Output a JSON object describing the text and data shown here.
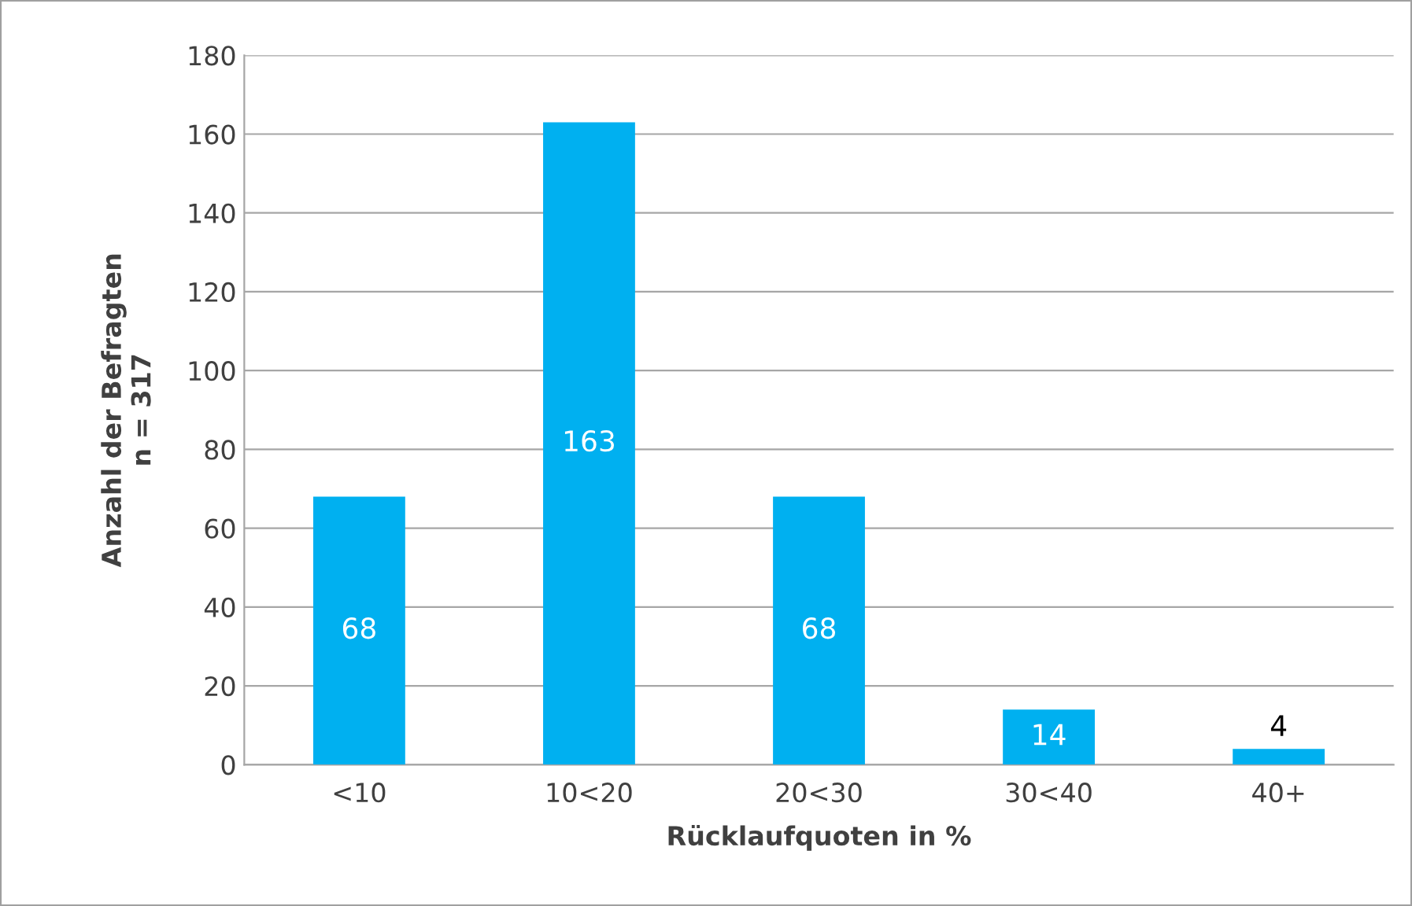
{
  "chart_data": {
    "type": "bar",
    "xlabel": "Rücklaufquoten in %",
    "ylabel": "Anzahl der Befragten\nn = 317",
    "categories": [
      "<10",
      "10<20",
      "20<30",
      "30<40",
      "40+"
    ],
    "values": [
      68,
      163,
      68,
      14,
      4
    ],
    "color": "#00b0f0",
    "ylim": [
      0,
      180
    ],
    "yticks": [
      0,
      20,
      40,
      60,
      80,
      100,
      120,
      140,
      160,
      180
    ],
    "grid": "y",
    "data_labels": true
  }
}
